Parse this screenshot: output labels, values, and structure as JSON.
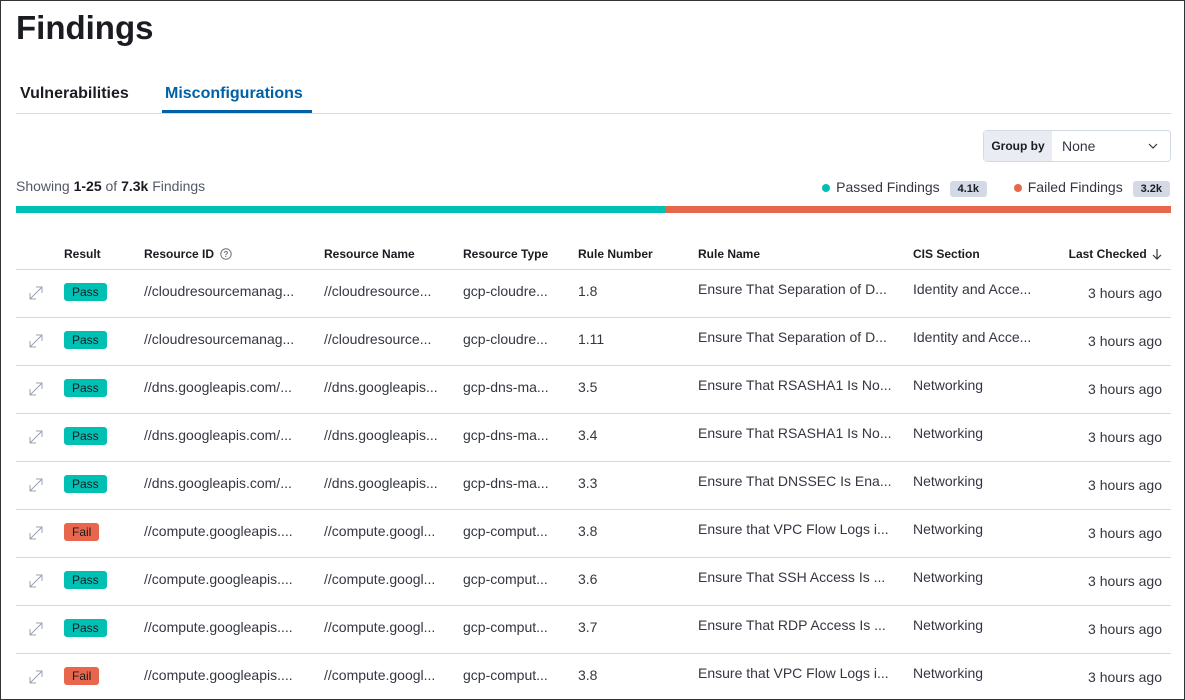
{
  "header": {
    "title": "Findings"
  },
  "tabs": [
    "Vulnerabilities",
    "Misconfigurations"
  ],
  "group_by": {
    "label": "Group by",
    "value": "None"
  },
  "summary": {
    "showing": "Showing",
    "range": "1-25",
    "of": "of",
    "total": "7.3k",
    "unit": "Findings",
    "passed": {
      "label": "Passed Findings",
      "count": "4.1k",
      "value": 4100
    },
    "failed": {
      "label": "Failed Findings",
      "count": "3.2k",
      "value": 3200
    }
  },
  "table": {
    "columns": [
      "Result",
      "Resource ID",
      "Resource Name",
      "Resource Type",
      "Rule Number",
      "Rule Name",
      "CIS Section",
      "Last Checked"
    ],
    "rows": [
      [
        "Pass",
        "//cloudresourcemanag...",
        "//cloudresource...",
        "gcp-cloudre...",
        "1.8",
        "Ensure That Separation of D...",
        "Identity and Acce...",
        "3 hours ago"
      ],
      [
        "Pass",
        "//cloudresourcemanag...",
        "//cloudresource...",
        "gcp-cloudre...",
        "1.11",
        "Ensure That Separation of D...",
        "Identity and Acce...",
        "3 hours ago"
      ],
      [
        "Pass",
        "//dns.googleapis.com/...",
        "//dns.googleapis...",
        "gcp-dns-ma...",
        "3.5",
        "Ensure That RSASHA1 Is No...",
        "Networking",
        "3 hours ago"
      ],
      [
        "Pass",
        "//dns.googleapis.com/...",
        "//dns.googleapis...",
        "gcp-dns-ma...",
        "3.4",
        "Ensure That RSASHA1 Is No...",
        "Networking",
        "3 hours ago"
      ],
      [
        "Pass",
        "//dns.googleapis.com/...",
        "//dns.googleapis...",
        "gcp-dns-ma...",
        "3.3",
        "Ensure That DNSSEC Is Ena...",
        "Networking",
        "3 hours ago"
      ],
      [
        "Fail",
        "//compute.googleapis....",
        "//compute.googl...",
        "gcp-comput...",
        "3.8",
        "Ensure that VPC Flow Logs i...",
        "Networking",
        "3 hours ago"
      ],
      [
        "Pass",
        "//compute.googleapis....",
        "//compute.googl...",
        "gcp-comput...",
        "3.6",
        "Ensure That SSH Access Is ...",
        "Networking",
        "3 hours ago"
      ],
      [
        "Pass",
        "//compute.googleapis....",
        "//compute.googl...",
        "gcp-comput...",
        "3.7",
        "Ensure That RDP Access Is ...",
        "Networking",
        "3 hours ago"
      ],
      [
        "Fail",
        "//compute.googleapis....",
        "//compute.googl...",
        "gcp-comput...",
        "3.8",
        "Ensure that VPC Flow Logs i...",
        "Networking",
        "3 hours ago"
      ]
    ]
  }
}
